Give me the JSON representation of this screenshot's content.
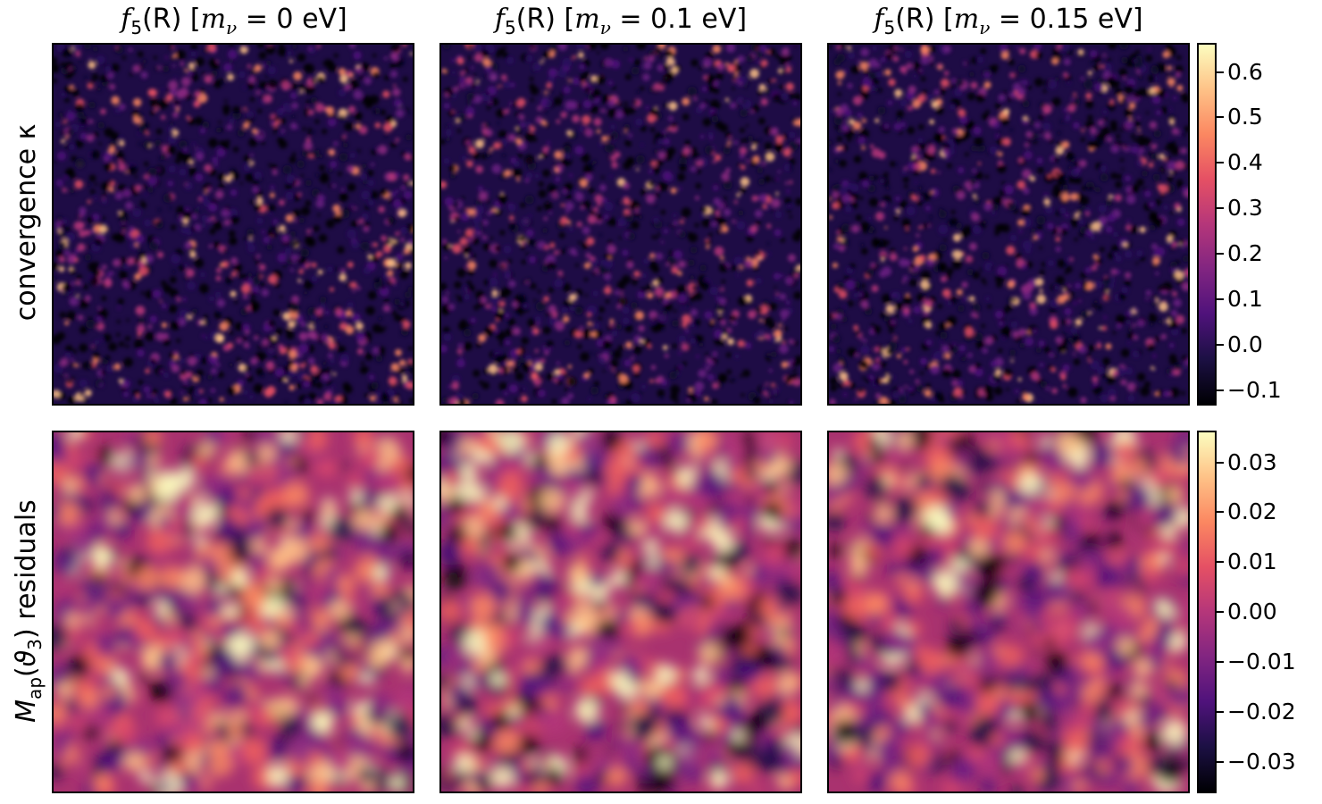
{
  "chart_data": [
    {
      "type": "heatmap",
      "title_parts": [
        {
          "fn": "f",
          "sub": "5",
          "arg": "(R)",
          "mnu_value": "0"
        },
        {
          "fn": "f",
          "sub": "5",
          "arg": "(R)",
          "mnu_value": "0.1"
        },
        {
          "fn": "f",
          "sub": "5",
          "arg": "(R)",
          "mnu_value": "0.15"
        }
      ],
      "column_titles": [
        "f5(R) [mν = 0 eV]",
        "f5(R) [mν = 0.1 eV]",
        "f5(R) [mν = 0.15 eV]"
      ],
      "mnu_unit": "eV",
      "mnu_symbol": "m",
      "mnu_sub": "ν",
      "rows": [
        {
          "label": "convergence κ",
          "colorbar": {
            "colormap": "magma",
            "range": [
              -0.13,
              0.66
            ],
            "ticks": [
              -0.1,
              0.0,
              0.1,
              0.2,
              0.3,
              0.4,
              0.5,
              0.6
            ],
            "tick_labels": [
              "−0.1",
              "0.0",
              "0.1",
              "0.2",
              "0.3",
              "0.4",
              "0.5",
              "0.6"
            ]
          }
        },
        {
          "label_parts": {
            "sym": "M",
            "sub": "ap",
            "arg_open": "(",
            "theta": "ϑ",
            "theta_sub": "3",
            "arg_close": ")",
            "rest": " residuals"
          },
          "label": "Map(ϑ3) residuals",
          "colorbar": {
            "colormap": "magma",
            "range": [
              -0.036,
              0.036
            ],
            "ticks": [
              -0.03,
              -0.02,
              -0.01,
              0.0,
              0.01,
              0.02,
              0.03
            ],
            "tick_labels": [
              "−0.03",
              "−0.02",
              "−0.01",
              "0.00",
              "0.01",
              "0.02",
              "0.03"
            ]
          }
        }
      ],
      "axes_ticks": false
    }
  ]
}
